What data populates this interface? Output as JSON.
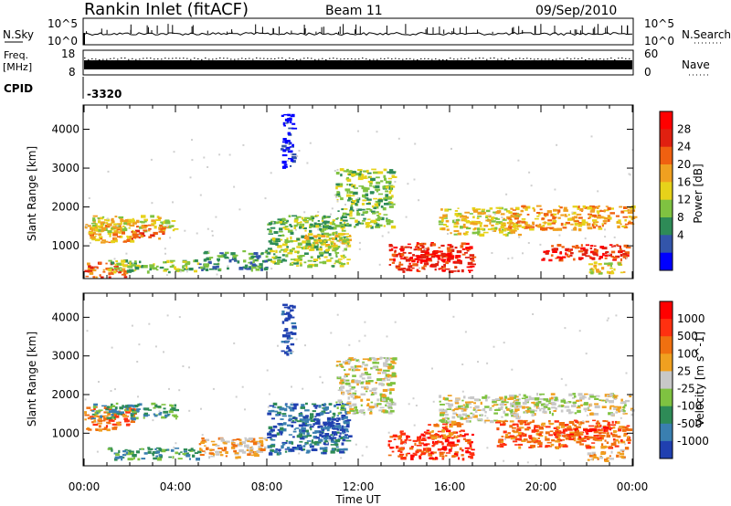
{
  "header": {
    "title": "Rankin Inlet (fitACF)",
    "beam": "Beam 11",
    "date": "09/Sep/2010"
  },
  "summary_panels": {
    "nsky_label": "N.Sky",
    "nsky_ticks": [
      "10^5",
      "10^0"
    ],
    "nsearch_label": "N.Search",
    "freq_label_line1": "Freq.",
    "freq_label_line2": "[MHz]",
    "freq_ticks": [
      "18",
      "8"
    ],
    "nave_label": "Nave",
    "nave_ticks": [
      "60",
      "0"
    ],
    "cpid_label": "CPID",
    "cpid_value": "-3320"
  },
  "chart_data": [
    {
      "type": "heatmap",
      "name": "power",
      "ylabel": "Slant Range [km]",
      "xlabel": "Time UT",
      "x_ticks": [
        "00:00",
        "04:00",
        "08:00",
        "12:00",
        "16:00",
        "20:00",
        "00:00"
      ],
      "xlim_hours": [
        0,
        24
      ],
      "y_ticks": [
        1000,
        2000,
        3000,
        4000
      ],
      "ylim_km": [
        180,
        4600
      ],
      "colorbar": {
        "label": "Power [dB]",
        "ticks": [
          "28",
          "24",
          "20",
          "16",
          "12",
          "8",
          "4"
        ],
        "colors": [
          "#0000ff",
          "#3355aa",
          "#2e8b57",
          "#7fc241",
          "#e6d21a",
          "#f0a020",
          "#f06010",
          "#e02010",
          "#ff0000"
        ]
      },
      "regions": [
        {
          "t0": 0.0,
          "t1": 2.2,
          "r0": 1100,
          "r1": 1700,
          "level": 5
        },
        {
          "t0": 0.0,
          "t1": 1.8,
          "r0": 200,
          "r1": 600,
          "level": 6
        },
        {
          "t0": 0.3,
          "t1": 4.0,
          "r0": 1400,
          "r1": 1800,
          "level": 4
        },
        {
          "t0": 2.0,
          "t1": 3.5,
          "r0": 1200,
          "r1": 1550,
          "level": 6
        },
        {
          "t0": 1.0,
          "t1": 5.0,
          "r0": 350,
          "r1": 650,
          "level": 3
        },
        {
          "t0": 5.0,
          "t1": 8.0,
          "r0": 400,
          "r1": 900,
          "level": 2
        },
        {
          "t0": 8.6,
          "t1": 9.1,
          "r0": 3000,
          "r1": 4400,
          "level": 0
        },
        {
          "t0": 8.0,
          "t1": 11.5,
          "r0": 500,
          "r1": 1800,
          "level": 3
        },
        {
          "t0": 9.5,
          "t1": 11.6,
          "r0": 900,
          "r1": 1350,
          "level": 4
        },
        {
          "t0": 11.0,
          "t1": 13.5,
          "r0": 1500,
          "r1": 3000,
          "level": 3
        },
        {
          "t0": 13.3,
          "t1": 17.0,
          "r0": 350,
          "r1": 1100,
          "level": 7
        },
        {
          "t0": 14.5,
          "t1": 16.3,
          "r0": 600,
          "r1": 900,
          "level": 8
        },
        {
          "t0": 15.5,
          "t1": 19.0,
          "r0": 1300,
          "r1": 2000,
          "level": 4
        },
        {
          "t0": 18.5,
          "t1": 24.0,
          "r0": 1450,
          "r1": 2050,
          "level": 5
        },
        {
          "t0": 20.0,
          "t1": 23.8,
          "r0": 650,
          "r1": 1050,
          "level": 7
        },
        {
          "t0": 22.0,
          "t1": 23.6,
          "r0": 300,
          "r1": 600,
          "level": 4
        }
      ]
    },
    {
      "type": "heatmap",
      "name": "velocity",
      "ylabel": "Slant Range [km]",
      "xlabel": "Time UT",
      "x_ticks": [
        "00:00",
        "04:00",
        "08:00",
        "12:00",
        "16:00",
        "20:00",
        "00:00"
      ],
      "xlim_hours": [
        0,
        24
      ],
      "y_ticks": [
        1000,
        2000,
        3000,
        4000
      ],
      "ylim_km": [
        180,
        4600
      ],
      "colorbar": {
        "label": "Velocity [m s^-1]",
        "ticks": [
          "1000",
          "500",
          "100",
          "25",
          "-25",
          "-100",
          "-500",
          "-1000"
        ],
        "colors": [
          "#2040b0",
          "#3a7fb0",
          "#2e8b57",
          "#7fc241",
          "#c8c8c8",
          "#f0a020",
          "#f07010",
          "#ff3010",
          "#ff0000"
        ]
      },
      "regions": [
        {
          "t0": 0.0,
          "t1": 2.2,
          "r0": 1100,
          "r1": 1700,
          "level": 6
        },
        {
          "t0": 0.3,
          "t1": 4.0,
          "r0": 1400,
          "r1": 1800,
          "level": 2
        },
        {
          "t0": 1.0,
          "t1": 5.0,
          "r0": 350,
          "r1": 650,
          "level": 2
        },
        {
          "t0": 5.0,
          "t1": 8.0,
          "r0": 400,
          "r1": 900,
          "level": 5
        },
        {
          "t0": 8.6,
          "t1": 9.1,
          "r0": 3000,
          "r1": 4400,
          "level": 0
        },
        {
          "t0": 8.0,
          "t1": 11.5,
          "r0": 500,
          "r1": 1800,
          "level": 1
        },
        {
          "t0": 10.0,
          "t1": 11.6,
          "r0": 900,
          "r1": 1400,
          "level": 0
        },
        {
          "t0": 11.0,
          "t1": 13.5,
          "r0": 1500,
          "r1": 3000,
          "level": 4
        },
        {
          "t0": 13.3,
          "t1": 17.0,
          "r0": 350,
          "r1": 1100,
          "level": 7
        },
        {
          "t0": 15.0,
          "t1": 16.5,
          "r0": 900,
          "r1": 1300,
          "level": 6
        },
        {
          "t0": 15.5,
          "t1": 19.0,
          "r0": 1300,
          "r1": 2000,
          "level": 4
        },
        {
          "t0": 18.5,
          "t1": 24.0,
          "r0": 1500,
          "r1": 2050,
          "level": 4
        },
        {
          "t0": 18.0,
          "t1": 23.8,
          "r0": 650,
          "r1": 1350,
          "level": 6
        },
        {
          "t0": 20.5,
          "t1": 23.0,
          "r0": 900,
          "r1": 1200,
          "level": 7
        },
        {
          "t0": 22.0,
          "t1": 23.6,
          "r0": 300,
          "r1": 600,
          "level": 5
        }
      ]
    }
  ]
}
